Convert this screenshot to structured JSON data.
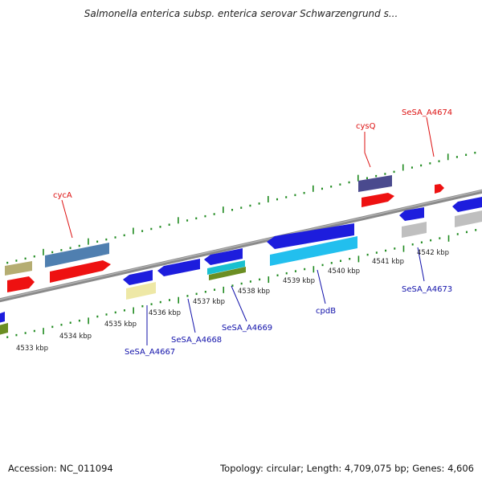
{
  "title": "Salmonella enterica subsp. enterica serovar Schwarzengrund s...",
  "colors": {
    "backbone": "#8a8a8a",
    "tick_green": "#1f8a1f",
    "label_red": "#dd1111",
    "label_blue": "#1111aa"
  },
  "scale": {
    "unit": "kbp",
    "ticks": [
      "4533 kbp",
      "4534 kbp",
      "4535 kbp",
      "4536 kbp",
      "4537 kbp",
      "4538 kbp",
      "4539 kbp",
      "4540 kbp",
      "4541 kbp",
      "4542 kbp"
    ]
  },
  "genes_top": {
    "label_cycA": "cycA",
    "label_cysQ": "cysQ",
    "label_SeSA_A4674": "SeSA_A4674"
  },
  "genes_bottom": {
    "label_SeSA_A4667": "SeSA_A4667",
    "label_SeSA_A4668": "SeSA_A4668",
    "label_SeSA_A4669": "SeSA_A4669",
    "label_cpdB": "cpdB",
    "label_SeSA_A4673": "SeSA_A4673"
  },
  "footer": {
    "accession": "Accession: NC_011094",
    "summary": "Topology: circular; Length: 4,709,075 bp; Genes: 4,606"
  }
}
